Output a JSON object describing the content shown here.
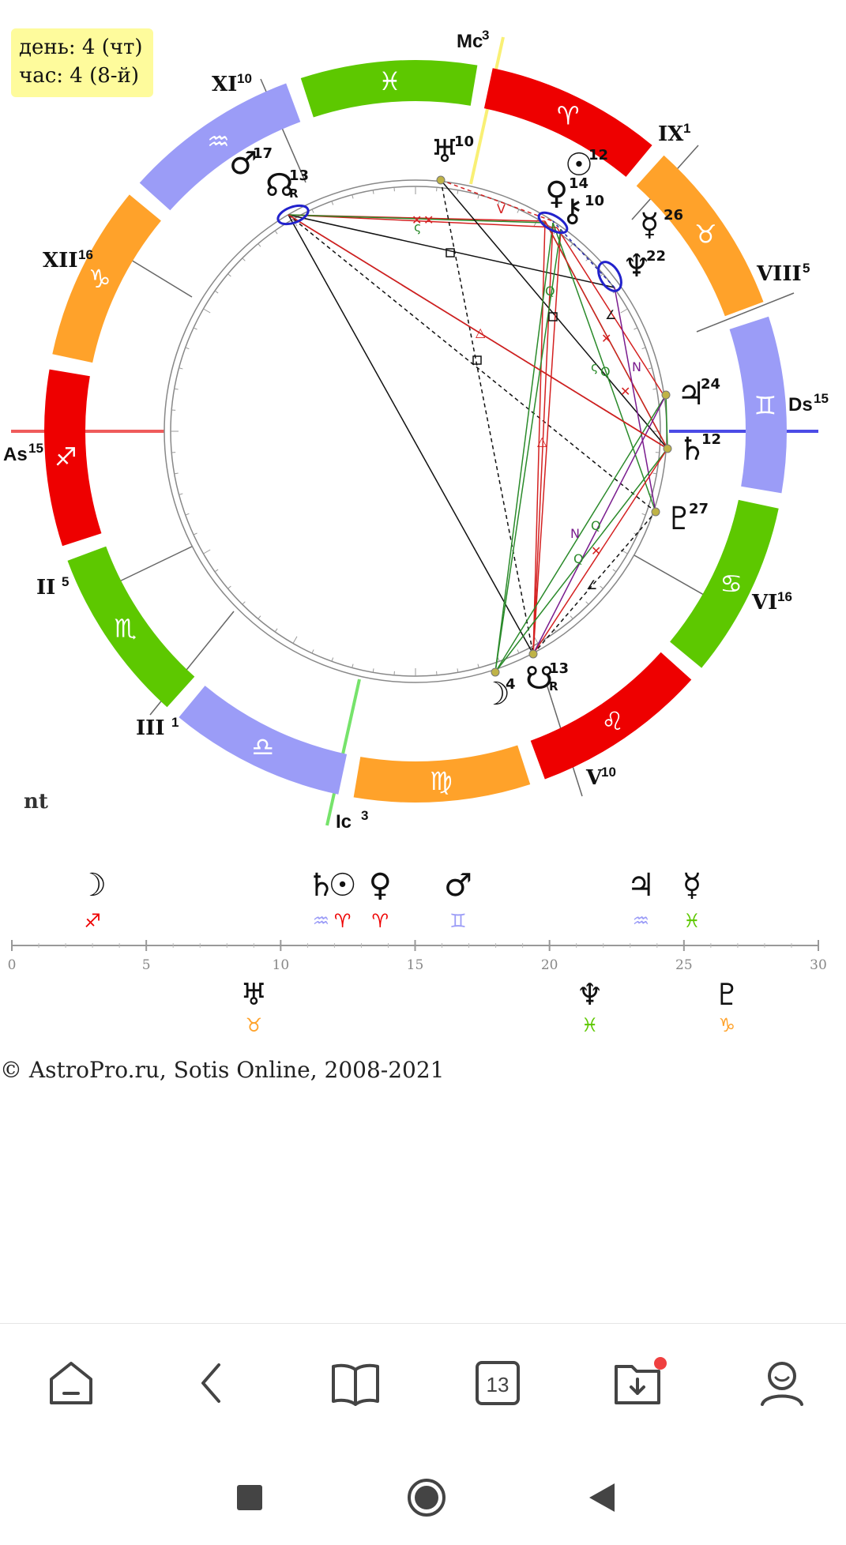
{
  "info": {
    "day": "день: 4 (чт)",
    "hour": "час: 4 (8-й)"
  },
  "nt_label": "nt",
  "copyright": "© AstroPro.ru, Sotis Online, 2008-2021",
  "chart": {
    "angles": [
      {
        "label": "Mc",
        "sup": "3"
      },
      {
        "label": "Ic",
        "sup": "3"
      },
      {
        "label": "As",
        "sup": "15"
      },
      {
        "label": "Ds",
        "sup": "15"
      }
    ],
    "houses": [
      {
        "label": "XI",
        "sup": "10"
      },
      {
        "label": "IX",
        "sup": "1"
      },
      {
        "label": "XII",
        "sup": "16"
      },
      {
        "label": "VIII",
        "sup": "5"
      },
      {
        "label": "II",
        "sup": "5"
      },
      {
        "label": "VI",
        "sup": "16"
      },
      {
        "label": "III",
        "sup": "1"
      },
      {
        "label": "V",
        "sup": "10"
      }
    ],
    "zodiac": [
      {
        "glyph": "♈",
        "color": "#ee0000"
      },
      {
        "glyph": "♉",
        "color": "#ffa22a"
      },
      {
        "glyph": "♊",
        "color": "#9b9cf7"
      },
      {
        "glyph": "♋",
        "color": "#5dc800"
      },
      {
        "glyph": "♌",
        "color": "#ee0000"
      },
      {
        "glyph": "♍",
        "color": "#ffa22a"
      },
      {
        "glyph": "♎",
        "color": "#9b9cf7"
      },
      {
        "glyph": "♏",
        "color": "#5dc800"
      },
      {
        "glyph": "♐",
        "color": "#ee0000"
      },
      {
        "glyph": "♑",
        "color": "#ffa22a"
      },
      {
        "glyph": "♒",
        "color": "#9b9cf7"
      },
      {
        "glyph": "♓",
        "color": "#5dc800"
      }
    ],
    "planets": [
      {
        "name": "uranus",
        "glyph": "♅",
        "deg": "10"
      },
      {
        "name": "sun",
        "glyph": "☉",
        "deg": "12"
      },
      {
        "name": "venus",
        "glyph": "♀",
        "deg": "14"
      },
      {
        "name": "chiron",
        "glyph": "⚷",
        "deg": "10"
      },
      {
        "name": "mercury",
        "glyph": "☿",
        "deg": "26"
      },
      {
        "name": "neptune",
        "glyph": "♆",
        "deg": "22"
      },
      {
        "name": "jupiter",
        "glyph": "♃",
        "deg": "24"
      },
      {
        "name": "saturn",
        "glyph": "♄",
        "deg": "12"
      },
      {
        "name": "pluto",
        "glyph": "♇",
        "deg": "27"
      },
      {
        "name": "south-node",
        "glyph": "☋",
        "deg": "13",
        "retro": "R"
      },
      {
        "name": "moon",
        "glyph": "☽",
        "deg": "4"
      },
      {
        "name": "north-node",
        "glyph": "☊",
        "deg": "13",
        "retro": "R"
      },
      {
        "name": "mars",
        "glyph": "♂",
        "deg": "17"
      }
    ]
  },
  "degree_scale": {
    "ticks": [
      "0",
      "5",
      "10",
      "15",
      "20",
      "25",
      "30"
    ],
    "above": [
      {
        "name": "moon",
        "glyph": "☽",
        "sign": "♐",
        "sign_color": "#ee0000",
        "deg": 3
      },
      {
        "name": "saturn",
        "glyph": "♄",
        "sign": "♒",
        "sign_color": "#9b9cf7",
        "deg": 11.5
      },
      {
        "name": "sun",
        "glyph": "☉",
        "sign": "♈",
        "sign_color": "#ee0000",
        "deg": 12.3
      },
      {
        "name": "venus",
        "glyph": "♀",
        "sign": "♈",
        "sign_color": "#ee0000",
        "deg": 13.7
      },
      {
        "name": "mars",
        "glyph": "♂",
        "sign": "♊",
        "sign_color": "#9b9cf7",
        "deg": 16.6
      },
      {
        "name": "jupiter",
        "glyph": "♃",
        "sign": "♒",
        "sign_color": "#9b9cf7",
        "deg": 23.4
      },
      {
        "name": "mercury",
        "glyph": "☿",
        "sign": "♓",
        "sign_color": "#5dc800",
        "deg": 25.3
      }
    ],
    "below": [
      {
        "name": "uranus",
        "glyph": "♅",
        "sign": "♉",
        "sign_color": "#ffa22a",
        "deg": 9
      },
      {
        "name": "neptune",
        "glyph": "♆",
        "sign": "♓",
        "sign_color": "#5dc800",
        "deg": 21.5
      },
      {
        "name": "pluto",
        "glyph": "♇",
        "sign": "♑",
        "sign_color": "#ffa22a",
        "deg": 26.6
      }
    ]
  },
  "navbar": {
    "items": [
      {
        "icon": "home-icon"
      },
      {
        "icon": "back-icon"
      },
      {
        "icon": "book-icon"
      },
      {
        "icon": "calendar-icon",
        "label": "13"
      },
      {
        "icon": "download-folder-icon",
        "badge": true
      },
      {
        "icon": "profile-icon"
      }
    ]
  },
  "system_bar": {
    "items": [
      "recents-button",
      "home-button",
      "back-button"
    ]
  }
}
